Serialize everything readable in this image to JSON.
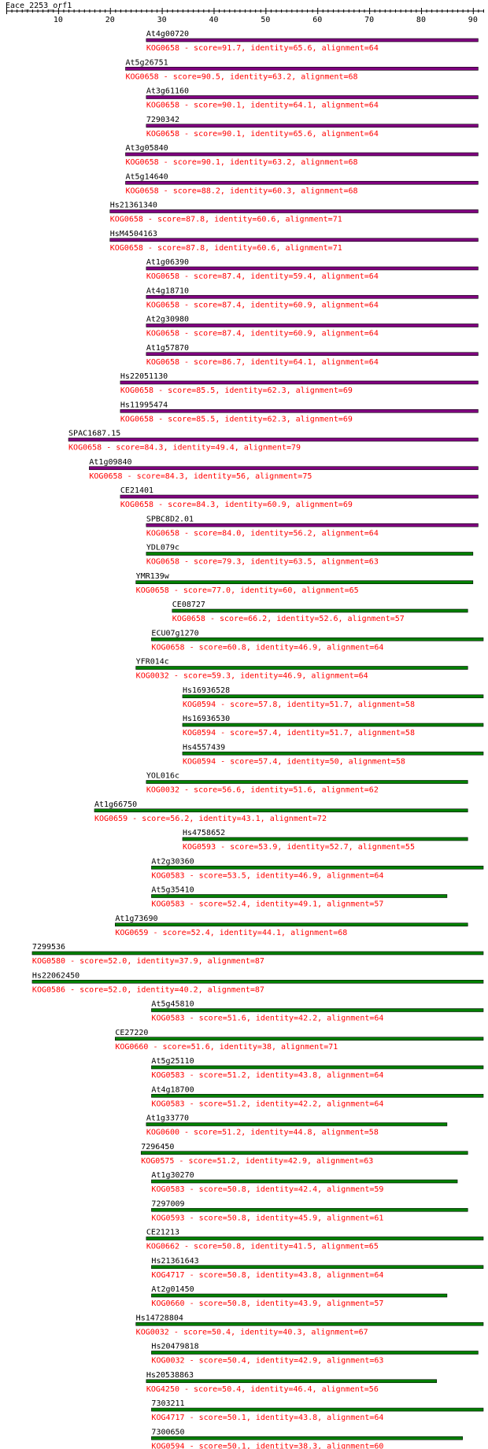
{
  "title": "Eace_2253_orf1",
  "colors": {
    "axis": "#000000",
    "label": "#000000",
    "description": "#ff0000",
    "purple_bar": "#800080",
    "green_bar": "#008000",
    "bar_outline": "#000000"
  },
  "chart_data": {
    "type": "bar",
    "title": "Eace_2253_orf1",
    "xlim": [
      0,
      92
    ],
    "xticks": [
      10,
      20,
      30,
      40,
      50,
      60,
      70,
      80,
      90
    ],
    "hits": [
      {
        "name": "At4g00720",
        "kog": "KOG0658",
        "score": "91.7",
        "identity": "65.6",
        "alignment": "64",
        "start": 27,
        "end": 91,
        "color": "purple"
      },
      {
        "name": "At5g26751",
        "kog": "KOG0658",
        "score": "90.5",
        "identity": "63.2",
        "alignment": "68",
        "start": 23,
        "end": 91,
        "color": "purple"
      },
      {
        "name": "At3g61160",
        "kog": "KOG0658",
        "score": "90.1",
        "identity": "64.1",
        "alignment": "64",
        "start": 27,
        "end": 91,
        "color": "purple"
      },
      {
        "name": "7290342",
        "kog": "KOG0658",
        "score": "90.1",
        "identity": "65.6",
        "alignment": "64",
        "start": 27,
        "end": 91,
        "color": "purple"
      },
      {
        "name": "At3g05840",
        "kog": "KOG0658",
        "score": "90.1",
        "identity": "63.2",
        "alignment": "68",
        "start": 23,
        "end": 91,
        "color": "purple"
      },
      {
        "name": "At5g14640",
        "kog": "KOG0658",
        "score": "88.2",
        "identity": "60.3",
        "alignment": "68",
        "start": 23,
        "end": 91,
        "color": "purple"
      },
      {
        "name": "Hs21361340",
        "kog": "KOG0658",
        "score": "87.8",
        "identity": "60.6",
        "alignment": "71",
        "start": 20,
        "end": 91,
        "color": "purple"
      },
      {
        "name": "HsM4504163",
        "kog": "KOG0658",
        "score": "87.8",
        "identity": "60.6",
        "alignment": "71",
        "start": 20,
        "end": 91,
        "color": "purple"
      },
      {
        "name": "At1g06390",
        "kog": "KOG0658",
        "score": "87.4",
        "identity": "59.4",
        "alignment": "64",
        "start": 27,
        "end": 91,
        "color": "purple"
      },
      {
        "name": "At4g18710",
        "kog": "KOG0658",
        "score": "87.4",
        "identity": "60.9",
        "alignment": "64",
        "start": 27,
        "end": 91,
        "color": "purple"
      },
      {
        "name": "At2g30980",
        "kog": "KOG0658",
        "score": "87.4",
        "identity": "60.9",
        "alignment": "64",
        "start": 27,
        "end": 91,
        "color": "purple"
      },
      {
        "name": "At1g57870",
        "kog": "KOG0658",
        "score": "86.7",
        "identity": "64.1",
        "alignment": "64",
        "start": 27,
        "end": 91,
        "color": "purple"
      },
      {
        "name": "Hs22051130",
        "kog": "KOG0658",
        "score": "85.5",
        "identity": "62.3",
        "alignment": "69",
        "start": 22,
        "end": 91,
        "color": "purple"
      },
      {
        "name": "Hs11995474",
        "kog": "KOG0658",
        "score": "85.5",
        "identity": "62.3",
        "alignment": "69",
        "start": 22,
        "end": 91,
        "color": "purple"
      },
      {
        "name": "SPAC1687.15",
        "kog": "KOG0658",
        "score": "84.3",
        "identity": "49.4",
        "alignment": "79",
        "start": 12,
        "end": 91,
        "color": "purple"
      },
      {
        "name": "At1g09840",
        "kog": "KOG0658",
        "score": "84.3",
        "identity": "56",
        "alignment": "75",
        "start": 16,
        "end": 91,
        "color": "purple"
      },
      {
        "name": "CE21401",
        "kog": "KOG0658",
        "score": "84.3",
        "identity": "60.9",
        "alignment": "69",
        "start": 22,
        "end": 91,
        "color": "purple"
      },
      {
        "name": "SPBC8D2.01",
        "kog": "KOG0658",
        "score": "84.0",
        "identity": "56.2",
        "alignment": "64",
        "start": 27,
        "end": 91,
        "color": "purple"
      },
      {
        "name": "YDL079c",
        "kog": "KOG0658",
        "score": "79.3",
        "identity": "63.5",
        "alignment": "63",
        "start": 27,
        "end": 90,
        "color": "green"
      },
      {
        "name": "YMR139w",
        "kog": "KOG0658",
        "score": "77.0",
        "identity": "60",
        "alignment": "65",
        "start": 25,
        "end": 90,
        "color": "green"
      },
      {
        "name": "CE08727",
        "kog": "KOG0658",
        "score": "66.2",
        "identity": "52.6",
        "alignment": "57",
        "start": 32,
        "end": 89,
        "color": "green"
      },
      {
        "name": "ECU07g1270",
        "kog": "KOG0658",
        "score": "60.8",
        "identity": "46.9",
        "alignment": "64",
        "start": 28,
        "end": 92,
        "color": "green"
      },
      {
        "name": "YFR014c",
        "kog": "KOG0032",
        "score": "59.3",
        "identity": "46.9",
        "alignment": "64",
        "start": 25,
        "end": 89,
        "color": "green"
      },
      {
        "name": "Hs16936528",
        "kog": "KOG0594",
        "score": "57.8",
        "identity": "51.7",
        "alignment": "58",
        "start": 34,
        "end": 92,
        "color": "green"
      },
      {
        "name": "Hs16936530",
        "kog": "KOG0594",
        "score": "57.4",
        "identity": "51.7",
        "alignment": "58",
        "start": 34,
        "end": 92,
        "color": "green"
      },
      {
        "name": "Hs4557439",
        "kog": "KOG0594",
        "score": "57.4",
        "identity": "50",
        "alignment": "58",
        "start": 34,
        "end": 92,
        "color": "green"
      },
      {
        "name": "YOL016c",
        "kog": "KOG0032",
        "score": "56.6",
        "identity": "51.6",
        "alignment": "62",
        "start": 27,
        "end": 89,
        "color": "green"
      },
      {
        "name": "At1g66750",
        "kog": "KOG0659",
        "score": "56.2",
        "identity": "43.1",
        "alignment": "72",
        "start": 17,
        "end": 89,
        "color": "green"
      },
      {
        "name": "Hs4758652",
        "kog": "KOG0593",
        "score": "53.9",
        "identity": "52.7",
        "alignment": "55",
        "start": 34,
        "end": 89,
        "color": "green"
      },
      {
        "name": "At2g30360",
        "kog": "KOG0583",
        "score": "53.5",
        "identity": "46.9",
        "alignment": "64",
        "start": 28,
        "end": 92,
        "color": "green"
      },
      {
        "name": "At5g35410",
        "kog": "KOG0583",
        "score": "52.4",
        "identity": "49.1",
        "alignment": "57",
        "start": 28,
        "end": 85,
        "color": "green"
      },
      {
        "name": "At1g73690",
        "kog": "KOG0659",
        "score": "52.4",
        "identity": "44.1",
        "alignment": "68",
        "start": 21,
        "end": 89,
        "color": "green"
      },
      {
        "name": "7299536",
        "kog": "KOG0580",
        "score": "52.0",
        "identity": "37.9",
        "alignment": "87",
        "start": 5,
        "end": 92,
        "color": "green"
      },
      {
        "name": "Hs22062450",
        "kog": "KOG0586",
        "score": "52.0",
        "identity": "40.2",
        "alignment": "87",
        "start": 5,
        "end": 92,
        "color": "green"
      },
      {
        "name": "At5g45810",
        "kog": "KOG0583",
        "score": "51.6",
        "identity": "42.2",
        "alignment": "64",
        "start": 28,
        "end": 92,
        "color": "green"
      },
      {
        "name": "CE27220",
        "kog": "KOG0660",
        "score": "51.6",
        "identity": "38",
        "alignment": "71",
        "start": 21,
        "end": 92,
        "color": "green"
      },
      {
        "name": "At5g25110",
        "kog": "KOG0583",
        "score": "51.2",
        "identity": "43.8",
        "alignment": "64",
        "start": 28,
        "end": 92,
        "color": "green"
      },
      {
        "name": "At4g18700",
        "kog": "KOG0583",
        "score": "51.2",
        "identity": "42.2",
        "alignment": "64",
        "start": 28,
        "end": 92,
        "color": "green"
      },
      {
        "name": "At1g33770",
        "kog": "KOG0600",
        "score": "51.2",
        "identity": "44.8",
        "alignment": "58",
        "start": 27,
        "end": 85,
        "color": "green"
      },
      {
        "name": "7296450",
        "kog": "KOG0575",
        "score": "51.2",
        "identity": "42.9",
        "alignment": "63",
        "start": 26,
        "end": 89,
        "color": "green"
      },
      {
        "name": "At1g30270",
        "kog": "KOG0583",
        "score": "50.8",
        "identity": "42.4",
        "alignment": "59",
        "start": 28,
        "end": 87,
        "color": "green"
      },
      {
        "name": "7297009",
        "kog": "KOG0593",
        "score": "50.8",
        "identity": "45.9",
        "alignment": "61",
        "start": 28,
        "end": 89,
        "color": "green"
      },
      {
        "name": "CE21213",
        "kog": "KOG0662",
        "score": "50.8",
        "identity": "41.5",
        "alignment": "65",
        "start": 27,
        "end": 92,
        "color": "green"
      },
      {
        "name": "Hs21361643",
        "kog": "KOG4717",
        "score": "50.8",
        "identity": "43.8",
        "alignment": "64",
        "start": 28,
        "end": 92,
        "color": "green"
      },
      {
        "name": "At2g01450",
        "kog": "KOG0660",
        "score": "50.8",
        "identity": "43.9",
        "alignment": "57",
        "start": 28,
        "end": 85,
        "color": "green"
      },
      {
        "name": "Hs14728804",
        "kog": "KOG0032",
        "score": "50.4",
        "identity": "40.3",
        "alignment": "67",
        "start": 25,
        "end": 92,
        "color": "green"
      },
      {
        "name": "Hs20479818",
        "kog": "KOG0032",
        "score": "50.4",
        "identity": "42.9",
        "alignment": "63",
        "start": 28,
        "end": 91,
        "color": "green"
      },
      {
        "name": "Hs20538863",
        "kog": "KOG4250",
        "score": "50.4",
        "identity": "46.4",
        "alignment": "56",
        "start": 27,
        "end": 83,
        "color": "green"
      },
      {
        "name": "7303211",
        "kog": "KOG4717",
        "score": "50.1",
        "identity": "43.8",
        "alignment": "64",
        "start": 28,
        "end": 92,
        "color": "green"
      },
      {
        "name": "7300650",
        "kog": "KOG0594",
        "score": "50.1",
        "identity": "38.3",
        "alignment": "60",
        "start": 28,
        "end": 88,
        "color": "green"
      }
    ]
  }
}
